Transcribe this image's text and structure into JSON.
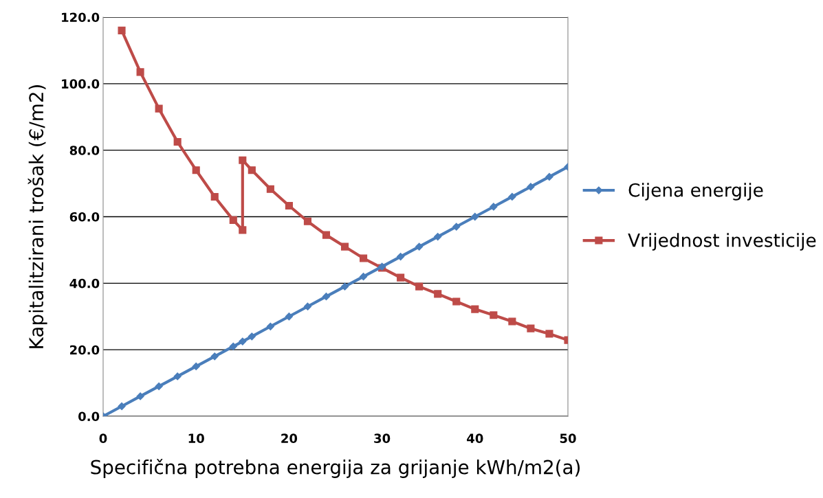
{
  "chart_data": {
    "type": "line",
    "xlabel": "Specifična potrebna energija za grijanje kWh/m2(a)",
    "ylabel": "Kapitalitzirani trošak (€/m2)",
    "series": [
      {
        "name": "Cijena energije",
        "color": "#4a7ebb",
        "marker": "diamond",
        "x": [
          0,
          2,
          4,
          6,
          8,
          10,
          12,
          14,
          15,
          16,
          18,
          20,
          22,
          24,
          26,
          28,
          30,
          32,
          34,
          36,
          38,
          40,
          42,
          44,
          46,
          48,
          50
        ],
        "values": [
          0,
          3,
          6,
          9,
          12,
          15,
          18,
          21,
          22.5,
          24,
          27,
          30,
          33,
          36,
          39,
          42,
          45,
          48,
          51,
          54,
          57,
          60,
          63,
          66,
          69,
          72,
          75
        ]
      },
      {
        "name": "Vrijednost investicije",
        "color": "#be4b48",
        "marker": "square",
        "x": [
          2,
          4,
          6,
          8,
          10,
          12,
          14,
          15,
          15,
          16,
          18,
          20,
          22,
          24,
          26,
          28,
          30,
          32,
          34,
          36,
          38,
          40,
          42,
          44,
          46,
          48,
          50
        ],
        "values": [
          116,
          103.5,
          92.5,
          82.5,
          74,
          66,
          59,
          56,
          77,
          74,
          68.3,
          63.3,
          58.6,
          54.5,
          51,
          47.5,
          44.6,
          41.7,
          39,
          36.8,
          34.5,
          32.2,
          30.4,
          28.5,
          26.4,
          24.8,
          22.9
        ]
      }
    ],
    "xlim": [
      0,
      50
    ],
    "xticks": [
      0,
      10,
      20,
      30,
      40,
      50
    ],
    "ylim": [
      0,
      120
    ],
    "yticks": [
      {
        "value": 0,
        "label": "0.0"
      },
      {
        "value": 20,
        "label": "20.0"
      },
      {
        "value": 40,
        "label": "40.0"
      },
      {
        "value": 60,
        "label": "60.0"
      },
      {
        "value": 80,
        "label": "80.0"
      },
      {
        "value": 100,
        "label": "100.0"
      },
      {
        "value": 120,
        "label": "120.0"
      }
    ],
    "grid": "y",
    "legend": "right",
    "line_style": "solid"
  }
}
